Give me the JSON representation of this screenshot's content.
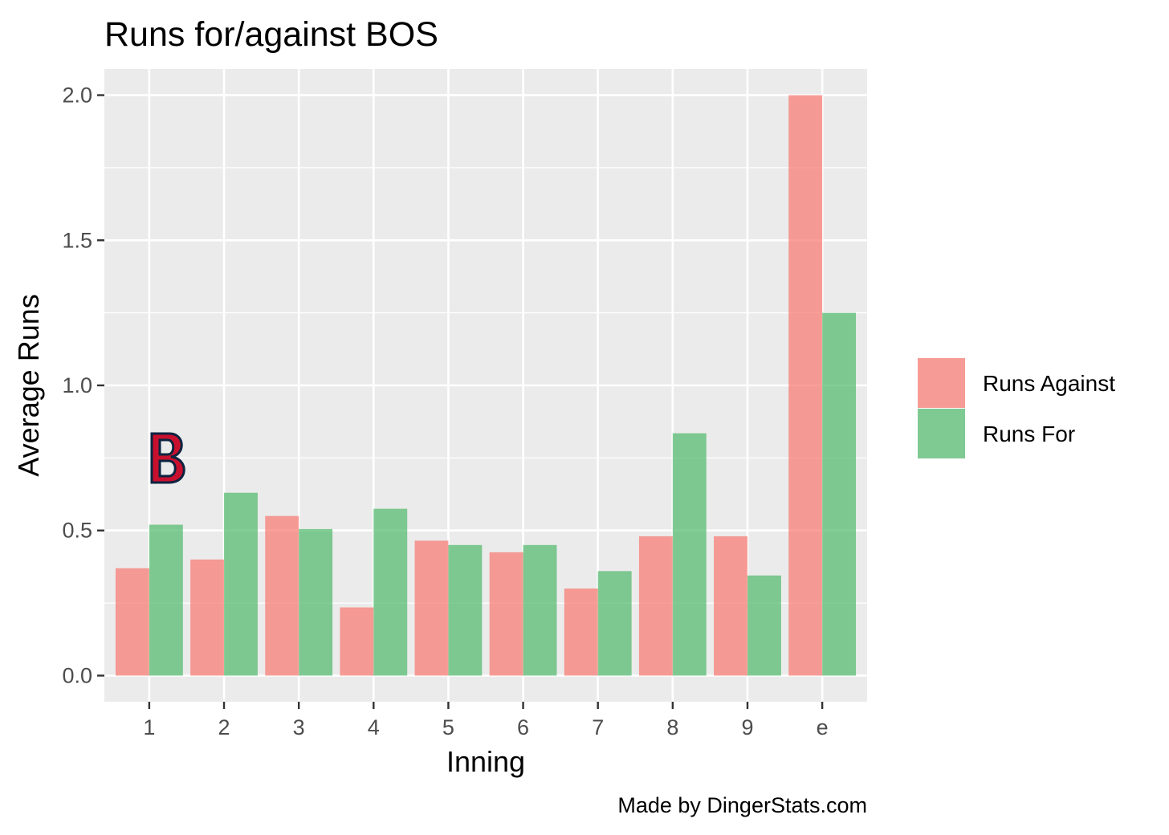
{
  "chart_data": {
    "type": "bar",
    "title": "Runs for/against BOS",
    "xlabel": "Inning",
    "ylabel": "Average Runs",
    "categories": [
      "1",
      "2",
      "3",
      "4",
      "5",
      "6",
      "7",
      "8",
      "9",
      "e"
    ],
    "series": [
      {
        "name": "Runs Against",
        "color": "#f8766d",
        "values": [
          0.37,
          0.4,
          0.55,
          0.235,
          0.465,
          0.425,
          0.3,
          0.48,
          0.48,
          2.0
        ]
      },
      {
        "name": "Runs For",
        "color": "#4fb86a",
        "values": [
          0.52,
          0.63,
          0.505,
          0.575,
          0.45,
          0.45,
          0.36,
          0.835,
          0.345,
          1.25
        ]
      }
    ],
    "ylim": [
      -0.09,
      2.09
    ],
    "yticks": [
      "0.0",
      "0.5",
      "1.0",
      "1.5",
      "2.0"
    ],
    "grid": true,
    "legend_position": "right",
    "caption": "Made by DingerStats.com",
    "logo": "red-sox-b-logo"
  }
}
